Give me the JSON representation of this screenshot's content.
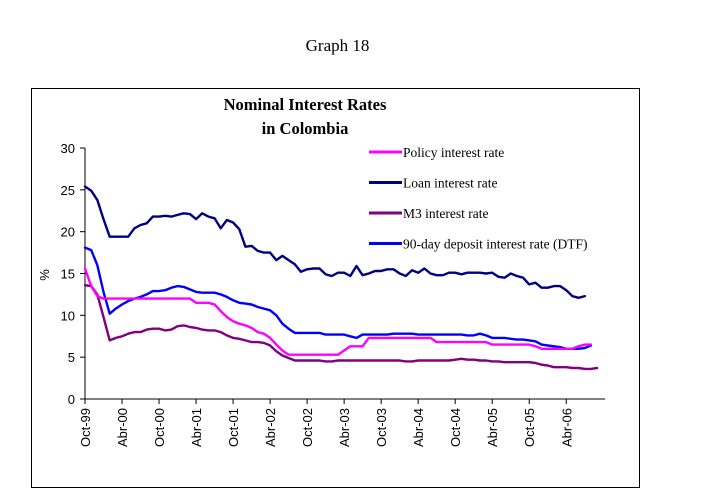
{
  "page": {
    "graph_label": "Graph 18"
  },
  "chart_data": {
    "type": "line",
    "title": [
      "Nominal Interest Rates",
      "in Colombia"
    ],
    "xlabel": "",
    "ylabel": "%",
    "ylim": [
      0,
      30
    ],
    "yticks": [
      0,
      5,
      10,
      15,
      20,
      25,
      30
    ],
    "x_start": "Oct-99",
    "x_frequency": "monthly",
    "xticks": [
      "Oct-99",
      "Abr-00",
      "Oct-00",
      "Abr-01",
      "Oct-01",
      "Abr-02",
      "Oct-02",
      "Abr-03",
      "Oct-03",
      "Abr-04",
      "Oct-04",
      "Abr-05",
      "Oct-05",
      "Abr-06"
    ],
    "xtick_every_months": 6,
    "grid": false,
    "legend_position": "top-right",
    "series": [
      {
        "name": "Policy interest rate",
        "color": "#FF00FF",
        "values": [
          15.6,
          13.5,
          12.3,
          12.0,
          12.0,
          12.0,
          12.0,
          12.0,
          12.0,
          12.0,
          12.0,
          12.0,
          12.0,
          12.0,
          12.0,
          12.0,
          12.0,
          12.0,
          11.5,
          11.5,
          11.5,
          11.3,
          10.5,
          9.8,
          9.3,
          9.0,
          8.8,
          8.5,
          8.0,
          7.8,
          7.3,
          6.5,
          5.8,
          5.3,
          5.3,
          5.3,
          5.3,
          5.3,
          5.3,
          5.3,
          5.3,
          5.3,
          5.8,
          6.3,
          6.3,
          6.3,
          7.3,
          7.3,
          7.3,
          7.3,
          7.3,
          7.3,
          7.3,
          7.3,
          7.3,
          7.3,
          7.3,
          6.8,
          6.8,
          6.8,
          6.8,
          6.8,
          6.8,
          6.8,
          6.8,
          6.8,
          6.5,
          6.5,
          6.5,
          6.5,
          6.5,
          6.5,
          6.5,
          6.3,
          6.0,
          6.0,
          6.0,
          6.0,
          6.0,
          6.0,
          6.3,
          6.5,
          6.5
        ]
      },
      {
        "name": "Loan interest rate",
        "color": "#000080",
        "values": [
          25.4,
          24.9,
          23.8,
          21.5,
          19.4,
          19.4,
          19.4,
          19.4,
          20.4,
          20.8,
          21.0,
          21.8,
          21.8,
          21.9,
          21.8,
          22.0,
          22.2,
          22.1,
          21.5,
          22.2,
          21.8,
          21.6,
          20.4,
          21.4,
          21.1,
          20.3,
          18.2,
          18.3,
          17.7,
          17.5,
          17.5,
          16.6,
          17.1,
          16.6,
          16.1,
          15.2,
          15.5,
          15.6,
          15.6,
          14.9,
          14.7,
          15.1,
          15.1,
          14.7,
          15.9,
          14.8,
          15.0,
          15.3,
          15.3,
          15.5,
          15.5,
          15.0,
          14.7,
          15.4,
          15.1,
          15.6,
          15.0,
          14.8,
          14.8,
          15.1,
          15.1,
          14.9,
          15.1,
          15.1,
          15.1,
          15.0,
          15.1,
          14.6,
          14.5,
          15.0,
          14.7,
          14.5,
          13.7,
          13.9,
          13.3,
          13.3,
          13.5,
          13.5,
          13.0,
          12.3,
          12.1,
          12.3
        ]
      },
      {
        "name": "M3 interest rate",
        "color": "#800080",
        "values": [
          13.6,
          13.5,
          12.5,
          9.8,
          7.0,
          7.3,
          7.5,
          7.8,
          8.0,
          8.0,
          8.3,
          8.4,
          8.4,
          8.2,
          8.3,
          8.7,
          8.8,
          8.6,
          8.5,
          8.3,
          8.2,
          8.2,
          8.0,
          7.6,
          7.3,
          7.2,
          7.0,
          6.8,
          6.8,
          6.7,
          6.4,
          5.7,
          5.2,
          4.9,
          4.6,
          4.6,
          4.6,
          4.6,
          4.6,
          4.5,
          4.5,
          4.6,
          4.6,
          4.6,
          4.6,
          4.6,
          4.6,
          4.6,
          4.6,
          4.6,
          4.6,
          4.6,
          4.5,
          4.5,
          4.6,
          4.6,
          4.6,
          4.6,
          4.6,
          4.6,
          4.7,
          4.8,
          4.7,
          4.7,
          4.6,
          4.6,
          4.5,
          4.5,
          4.4,
          4.4,
          4.4,
          4.4,
          4.4,
          4.3,
          4.1,
          4.0,
          3.8,
          3.8,
          3.8,
          3.7,
          3.7,
          3.6,
          3.6,
          3.7
        ]
      },
      {
        "name": "90-day deposit interest rate (DTF)",
        "color": "#0000FF",
        "values": [
          18.1,
          17.8,
          16.0,
          12.8,
          10.2,
          10.8,
          11.3,
          11.7,
          12.0,
          12.2,
          12.5,
          12.9,
          12.9,
          13.0,
          13.3,
          13.5,
          13.4,
          13.1,
          12.8,
          12.7,
          12.7,
          12.7,
          12.5,
          12.2,
          11.8,
          11.5,
          11.4,
          11.3,
          11.0,
          10.8,
          10.6,
          10.0,
          9.0,
          8.4,
          7.9,
          7.9,
          7.9,
          7.9,
          7.9,
          7.7,
          7.7,
          7.7,
          7.7,
          7.5,
          7.3,
          7.7,
          7.7,
          7.7,
          7.7,
          7.7,
          7.8,
          7.8,
          7.8,
          7.8,
          7.7,
          7.7,
          7.7,
          7.7,
          7.7,
          7.7,
          7.7,
          7.7,
          7.6,
          7.6,
          7.8,
          7.6,
          7.3,
          7.3,
          7.3,
          7.2,
          7.1,
          7.1,
          7.0,
          6.9,
          6.5,
          6.4,
          6.3,
          6.2,
          6.0,
          6.0,
          6.0,
          6.1,
          6.4
        ]
      }
    ]
  }
}
